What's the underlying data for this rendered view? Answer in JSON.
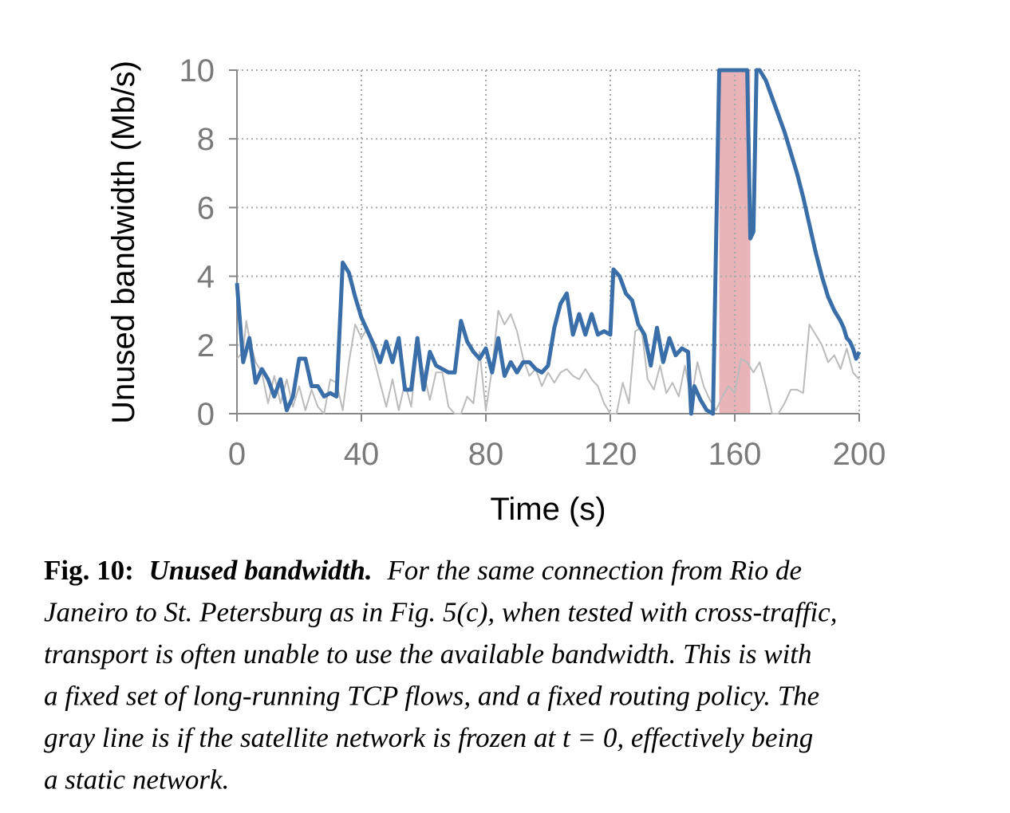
{
  "chart_data": {
    "type": "line",
    "xlabel": "Time (s)",
    "ylabel": "Unused bandwidth (Mb/s)",
    "xlim": [
      0,
      200
    ],
    "xticks": [
      0,
      40,
      80,
      120,
      160,
      200
    ],
    "ylim": [
      0,
      10
    ],
    "yticks": [
      0,
      2,
      4,
      6,
      8,
      10
    ],
    "grid": true,
    "shaded_region": [
      155,
      165
    ],
    "shaded_color": "#e8b4b8",
    "series": [
      {
        "color": "#bbbbbb",
        "width": 2,
        "x": [
          0,
          2,
          3,
          4,
          6,
          8,
          10,
          12,
          14,
          16,
          18,
          20,
          22,
          24,
          26,
          28,
          30,
          32,
          34,
          36,
          38,
          40,
          42,
          44,
          46,
          48,
          50,
          52,
          54,
          56,
          58,
          60,
          62,
          64,
          66,
          68,
          70,
          72,
          74,
          76,
          78,
          80,
          82,
          84,
          86,
          88,
          90,
          92,
          94,
          96,
          98,
          100,
          102,
          104,
          106,
          108,
          110,
          112,
          114,
          116,
          118,
          120,
          122,
          124,
          126,
          128,
          130,
          132,
          134,
          136,
          138,
          140,
          142,
          144,
          146,
          148,
          150,
          152,
          154,
          156,
          158,
          160,
          162,
          164,
          166,
          168,
          170,
          172,
          174,
          176,
          178,
          180,
          182,
          184,
          186,
          188,
          190,
          192,
          194,
          196,
          198,
          200
        ],
        "values": [
          1.6,
          1.8,
          2.7,
          2.2,
          1.5,
          1.2,
          0.3,
          1.1,
          0.3,
          1.0,
          0.2,
          0.8,
          0.1,
          0.7,
          0.2,
          0.0,
          1.0,
          0.9,
          0.1,
          1.5,
          2.6,
          2.2,
          2.5,
          1.6,
          0.9,
          0.2,
          1.0,
          0.1,
          0.9,
          0.2,
          1.9,
          1.2,
          0.4,
          1.2,
          1.2,
          0.2,
          0.0,
          0.0,
          0.5,
          0.3,
          1.8,
          0.1,
          1.3,
          3.0,
          2.6,
          2.9,
          2.4,
          1.6,
          1.1,
          1.3,
          0.8,
          1.2,
          0.9,
          1.2,
          1.3,
          1.1,
          1.0,
          1.3,
          1.0,
          0.8,
          0.3,
          0.0,
          0.0,
          0.9,
          0.3,
          2.4,
          2.5,
          1.0,
          0.7,
          1.4,
          0.6,
          0.9,
          0.5,
          1.4,
          0.4,
          1.5,
          0.8,
          0.4,
          0.1,
          0.5,
          0.8,
          0.6,
          1.6,
          1.5,
          1.2,
          1.5,
          0.8,
          0.0,
          0.0,
          0.3,
          0.7,
          0.7,
          0.6,
          2.6,
          2.3,
          2.0,
          1.5,
          1.7,
          1.3,
          1.9,
          1.2,
          1.0
        ]
      },
      {
        "color": "#3a6ea8",
        "width": 5,
        "x": [
          0,
          2,
          4,
          6,
          8,
          10,
          12,
          14,
          16,
          18,
          20,
          22,
          24,
          26,
          28,
          30,
          32,
          34,
          36,
          38,
          40,
          42,
          44,
          46,
          48,
          50,
          52,
          54,
          56,
          58,
          60,
          62,
          64,
          66,
          68,
          70,
          72,
          74,
          76,
          78,
          80,
          82,
          84,
          86,
          88,
          90,
          92,
          94,
          96,
          98,
          100,
          102,
          104,
          106,
          108,
          110,
          112,
          114,
          116,
          118,
          120,
          121,
          123,
          125,
          127,
          129,
          131,
          133,
          135,
          137,
          139,
          141,
          143,
          145,
          146,
          147,
          149,
          151,
          153,
          155,
          164,
          165,
          166,
          167,
          168,
          170,
          172,
          174,
          176,
          178,
          180,
          182,
          184,
          186,
          188,
          190,
          192,
          194,
          195,
          196,
          197,
          198,
          199,
          200
        ],
        "values": [
          3.8,
          1.5,
          2.2,
          0.9,
          1.3,
          1.0,
          0.5,
          1.0,
          0.1,
          0.5,
          1.6,
          1.6,
          0.8,
          0.8,
          0.5,
          0.6,
          0.5,
          4.4,
          4.1,
          3.4,
          2.8,
          2.4,
          2.0,
          1.5,
          2.1,
          1.5,
          2.2,
          0.7,
          0.7,
          2.2,
          0.7,
          1.8,
          1.4,
          1.3,
          1.2,
          1.2,
          2.7,
          2.1,
          1.8,
          1.6,
          1.9,
          1.2,
          2.2,
          1.1,
          1.5,
          1.2,
          1.5,
          1.5,
          1.3,
          1.2,
          1.4,
          2.5,
          3.2,
          3.5,
          2.3,
          2.9,
          2.3,
          2.9,
          2.3,
          2.4,
          2.3,
          4.2,
          4.0,
          3.5,
          3.3,
          2.6,
          2.3,
          1.4,
          2.5,
          1.5,
          2.2,
          1.7,
          1.9,
          1.8,
          0.0,
          0.8,
          0.4,
          0.1,
          0.0,
          10,
          10,
          5.1,
          5.3,
          10,
          10,
          9.7,
          9.2,
          8.7,
          8.2,
          7.6,
          7.0,
          6.3,
          5.5,
          4.7,
          4.0,
          3.4,
          3.0,
          2.7,
          2.5,
          2.2,
          2.1,
          1.9,
          1.6,
          1.8
        ]
      }
    ]
  },
  "caption": {
    "label": "Fig. 10:",
    "title": "Unused bandwidth.",
    "lines": [
      "For the same connection from Rio de",
      "Janeiro to St. Petersburg as in Fig. 5(c), when tested with cross-traffic,",
      "transport is often unable to use the available bandwidth. This is with",
      "a fixed set of long-running TCP flows, and a fixed routing policy. The",
      "gray line is if the satellite network is frozen at t = 0, effectively being",
      "a static network."
    ]
  }
}
